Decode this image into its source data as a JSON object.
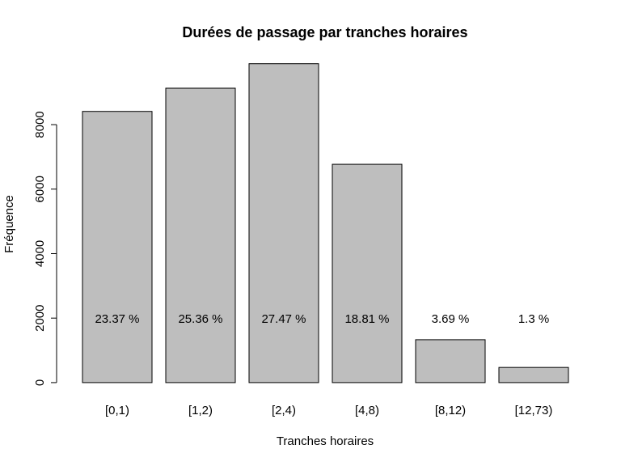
{
  "chart_data": {
    "type": "bar",
    "title": "Durées de passage par tranches horaires",
    "x_label": "Tranches horaires",
    "y_label": "Fréquence",
    "categories": [
      "[0,1)",
      "[1,2)",
      "[2,4)",
      "[4,8)",
      "[8,12)",
      "[12,73)"
    ],
    "values": [
      8410,
      9130,
      9890,
      6770,
      1330,
      470
    ],
    "annotations": [
      "23.37 %",
      "25.36 %",
      "27.47 %",
      "18.81 %",
      "3.69 %",
      "1.3 %"
    ],
    "color": "#bebebe",
    "ylim": [
      -780,
      10420
    ],
    "yticks": [
      0,
      2000,
      4000,
      6000,
      8000
    ],
    "grid": false
  }
}
